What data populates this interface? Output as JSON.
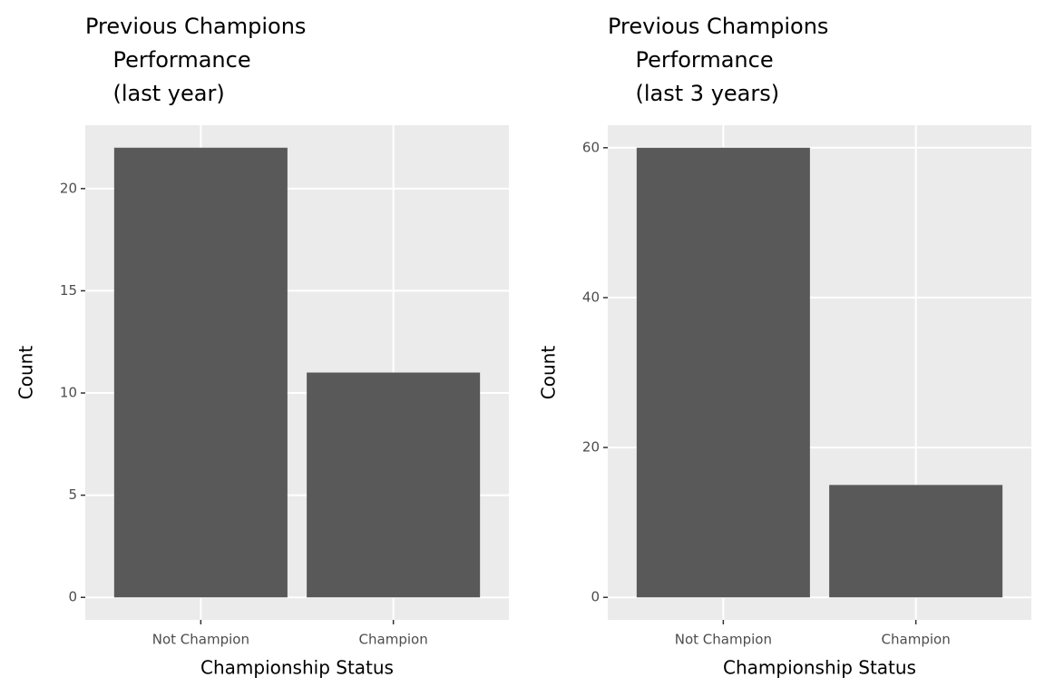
{
  "chart_data": [
    {
      "type": "bar",
      "title": "Previous Champions\n    Performance\n    (last year)",
      "x_label": "Championship Status",
      "y_label": "Count",
      "categories": [
        "Not Champion",
        "Champion"
      ],
      "values": [
        22,
        11
      ],
      "color": "#595959",
      "ylim": [
        -1.1,
        23.1
      ],
      "yticks": [
        0,
        5,
        10,
        15,
        20
      ],
      "grid": true
    },
    {
      "type": "bar",
      "title": "Previous Champions\n    Performance\n    (last 3 years)",
      "x_label": "Championship Status",
      "y_label": "Count",
      "categories": [
        "Not Champion",
        "Champion"
      ],
      "values": [
        60,
        15
      ],
      "color": "#595959",
      "ylim": [
        -3,
        63
      ],
      "yticks": [
        0,
        20,
        40,
        60
      ],
      "grid": true
    }
  ]
}
